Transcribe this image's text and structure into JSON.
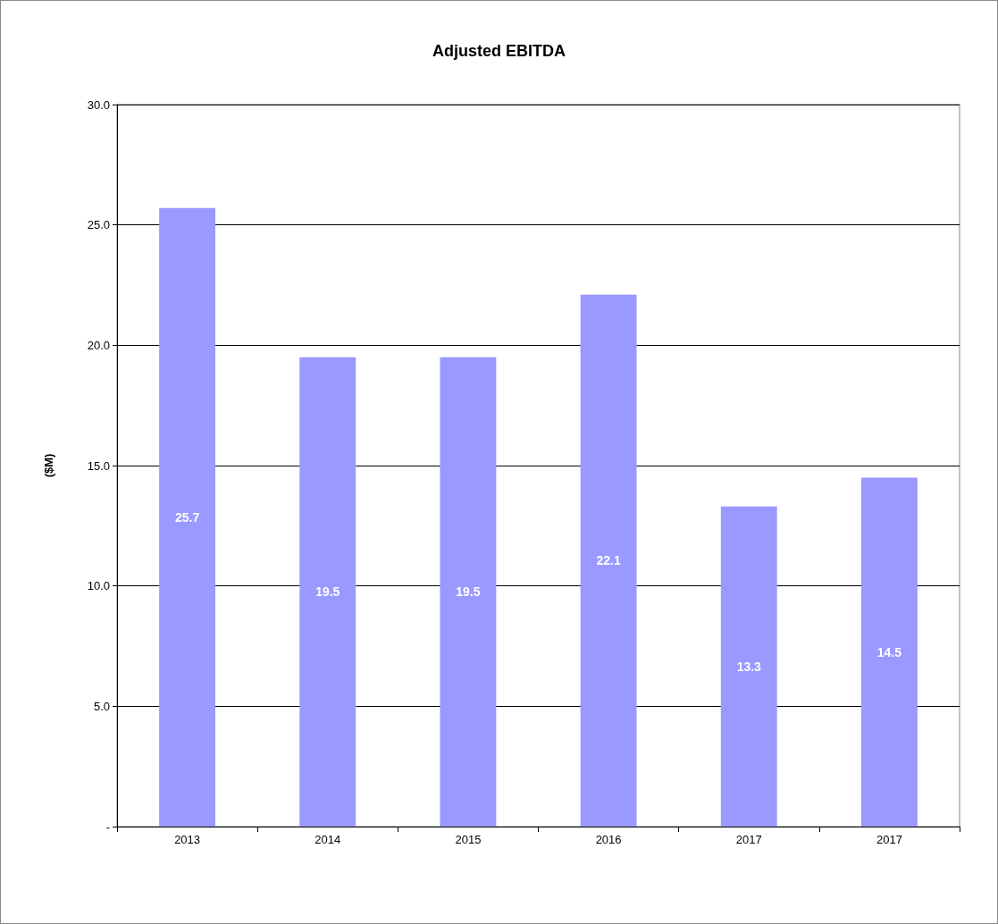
{
  "chart_data": {
    "type": "bar",
    "title": "Adjusted EBITDA",
    "ylabel": "($M)",
    "categories": [
      "2013",
      "2014",
      "2015",
      "2016",
      "2017",
      "2017"
    ],
    "values": [
      25.7,
      19.5,
      19.5,
      22.1,
      13.3,
      14.5
    ],
    "color": "#9999ff",
    "data_labels": true,
    "grid": "y",
    "ylim": [
      0,
      30
    ],
    "yticks": [
      {
        "value": 0,
        "label": "-"
      },
      {
        "value": 5,
        "label": "5.0"
      },
      {
        "value": 10,
        "label": "10.0"
      },
      {
        "value": 15,
        "label": "15.0"
      },
      {
        "value": 20,
        "label": "20.0"
      },
      {
        "value": 25,
        "label": "25.0"
      },
      {
        "value": 30,
        "label": "30.0"
      }
    ]
  }
}
